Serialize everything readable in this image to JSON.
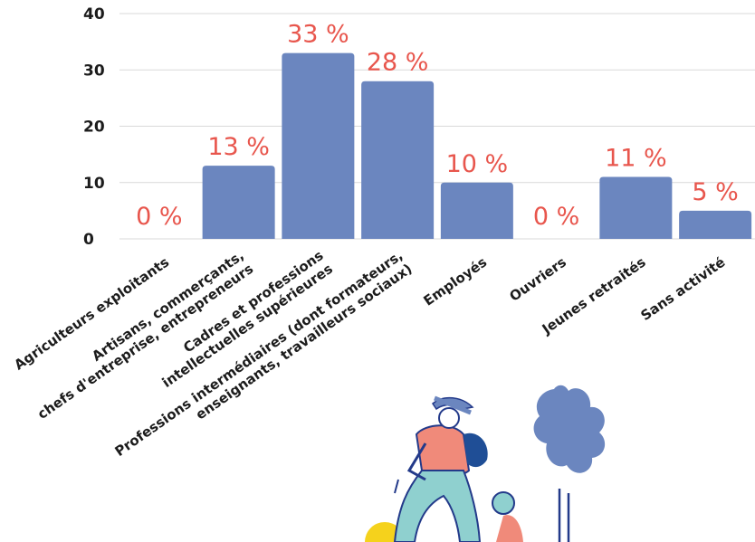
{
  "chart_data": {
    "type": "bar",
    "categories": [
      [
        "Agriculteurs exploitants"
      ],
      [
        "Artisans, commerçants,",
        "chefs d'entreprise, entrepreneurs"
      ],
      [
        "Cadres et professions",
        "intellectuelles supérieures"
      ],
      [
        "Professions intermédiaires (dont formateurs,",
        "enseignants, travailleurs sociaux)"
      ],
      [
        "Employés"
      ],
      [
        "Ouvriers"
      ],
      [
        "Jeunes retraités"
      ],
      [
        "Sans activité"
      ]
    ],
    "values": [
      0,
      13,
      33,
      28,
      10,
      0,
      11,
      5
    ],
    "data_labels": [
      "0 %",
      "13 %",
      "33 %",
      "28 %",
      "10 %",
      "0 %",
      "11 %",
      "5 %"
    ],
    "yticks": [
      "0",
      "10",
      "20",
      "30",
      "40"
    ],
    "ylim": [
      0,
      40
    ],
    "grid": true,
    "colors": {
      "bar": "#6b86bf",
      "label": "#e8564d",
      "grid": "#d9d9d9",
      "text": "#1c1c1c"
    }
  },
  "illustration": {
    "description_icons": [
      "cyclist-illustration-icon",
      "tree-illustration-icon"
    ],
    "colors": {
      "skin_outline": "#233a8a",
      "shirt": "#f08a7a",
      "pants": "#8fd0cf",
      "hat": "#6b86bf",
      "tree": "#6b86bf",
      "sun": "#f5d21c",
      "backpack": "#1f4e96"
    }
  }
}
